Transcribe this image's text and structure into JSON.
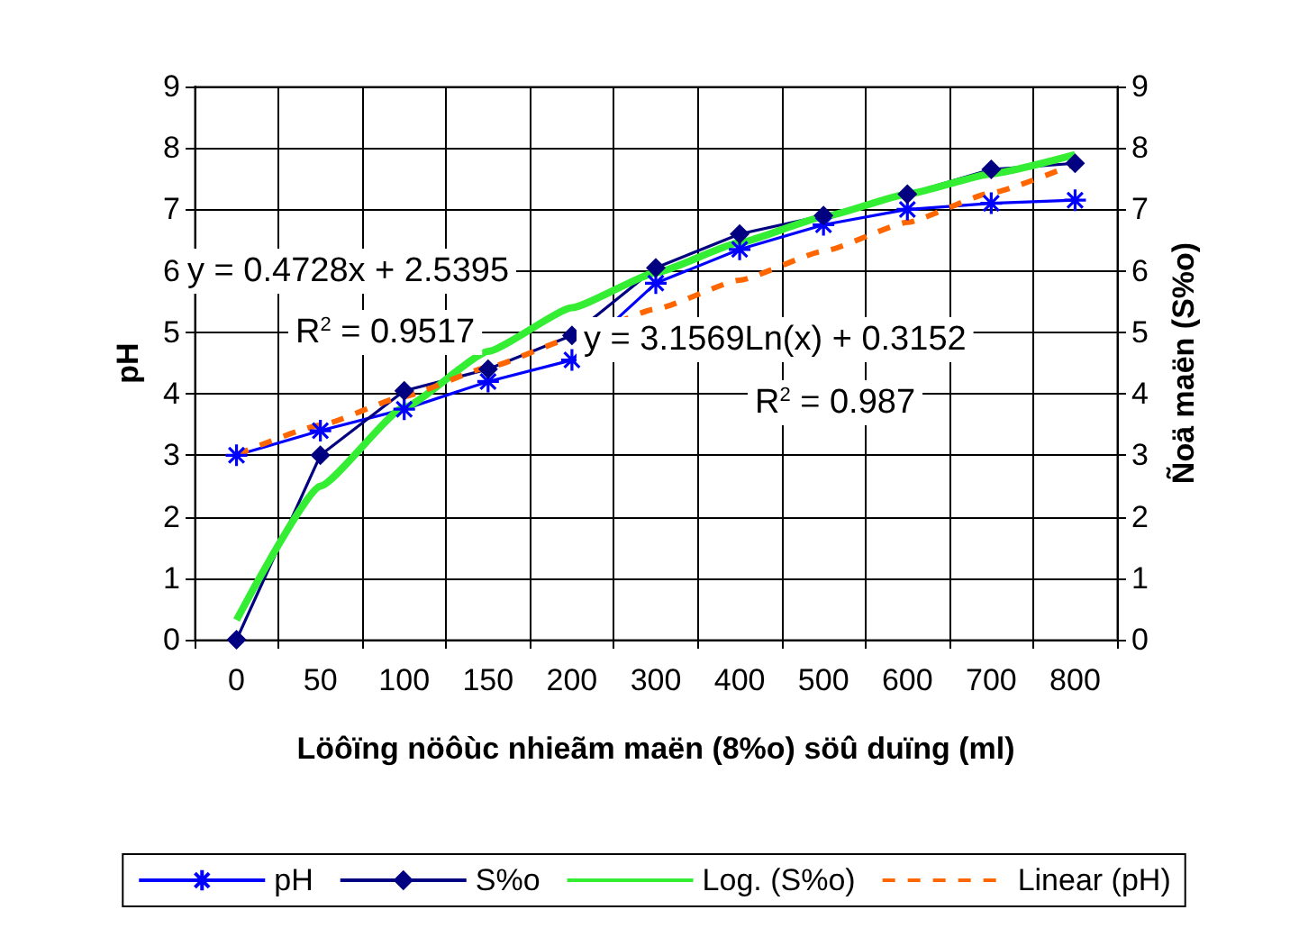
{
  "chart_data": {
    "type": "line",
    "categories": [
      "0",
      "50",
      "100",
      "150",
      "200",
      "300",
      "400",
      "500",
      "600",
      "700",
      "800"
    ],
    "series": [
      {
        "name": "pH",
        "color": "#0000ff",
        "marker": "cross",
        "line_style": "solid",
        "values": [
          3.0,
          3.4,
          3.75,
          4.2,
          4.55,
          5.8,
          6.35,
          6.75,
          7.0,
          7.1,
          7.15
        ]
      },
      {
        "name": "S%o",
        "color": "#000080",
        "marker": "diamond",
        "line_style": "solid",
        "values": [
          0,
          3.0,
          4.05,
          4.4,
          4.95,
          6.05,
          6.6,
          6.9,
          7.25,
          7.65,
          7.75
        ]
      },
      {
        "name": "Log. (S%o)",
        "color": "#33ee33",
        "marker": "none",
        "line_style": "solid",
        "values": [
          0.32,
          2.5,
          3.78,
          4.69,
          5.4,
          5.97,
          6.46,
          6.88,
          7.25,
          7.58,
          7.89
        ]
      },
      {
        "name": "Linear (pH)",
        "color": "#ff6600",
        "marker": "none",
        "line_style": "dashed",
        "values": [
          3.01,
          3.49,
          3.96,
          4.43,
          4.9,
          5.38,
          5.85,
          6.32,
          6.79,
          7.27,
          7.74
        ]
      }
    ],
    "xlabel": "Löôïng nöôùc nhieãm maën (8%o) söû duïng (ml)",
    "ylabel": "pH",
    "y2label": "Ñoä maën (S%o)",
    "ylim": [
      0,
      9
    ],
    "yticks": [
      0,
      1,
      2,
      3,
      4,
      5,
      6,
      7,
      8,
      9
    ],
    "y2lim": [
      0,
      9
    ],
    "y2ticks": [
      0,
      1,
      2,
      3,
      4,
      5,
      6,
      7,
      8,
      9
    ],
    "grid": true,
    "legend": "bottom",
    "annotations": [
      "y = 0.4728x + 2.5395",
      "R$^{2}$ = 0.9517",
      "y = 3.1569Ln(x) + 0.3152",
      "R$^{2}$ = 0.987"
    ]
  }
}
